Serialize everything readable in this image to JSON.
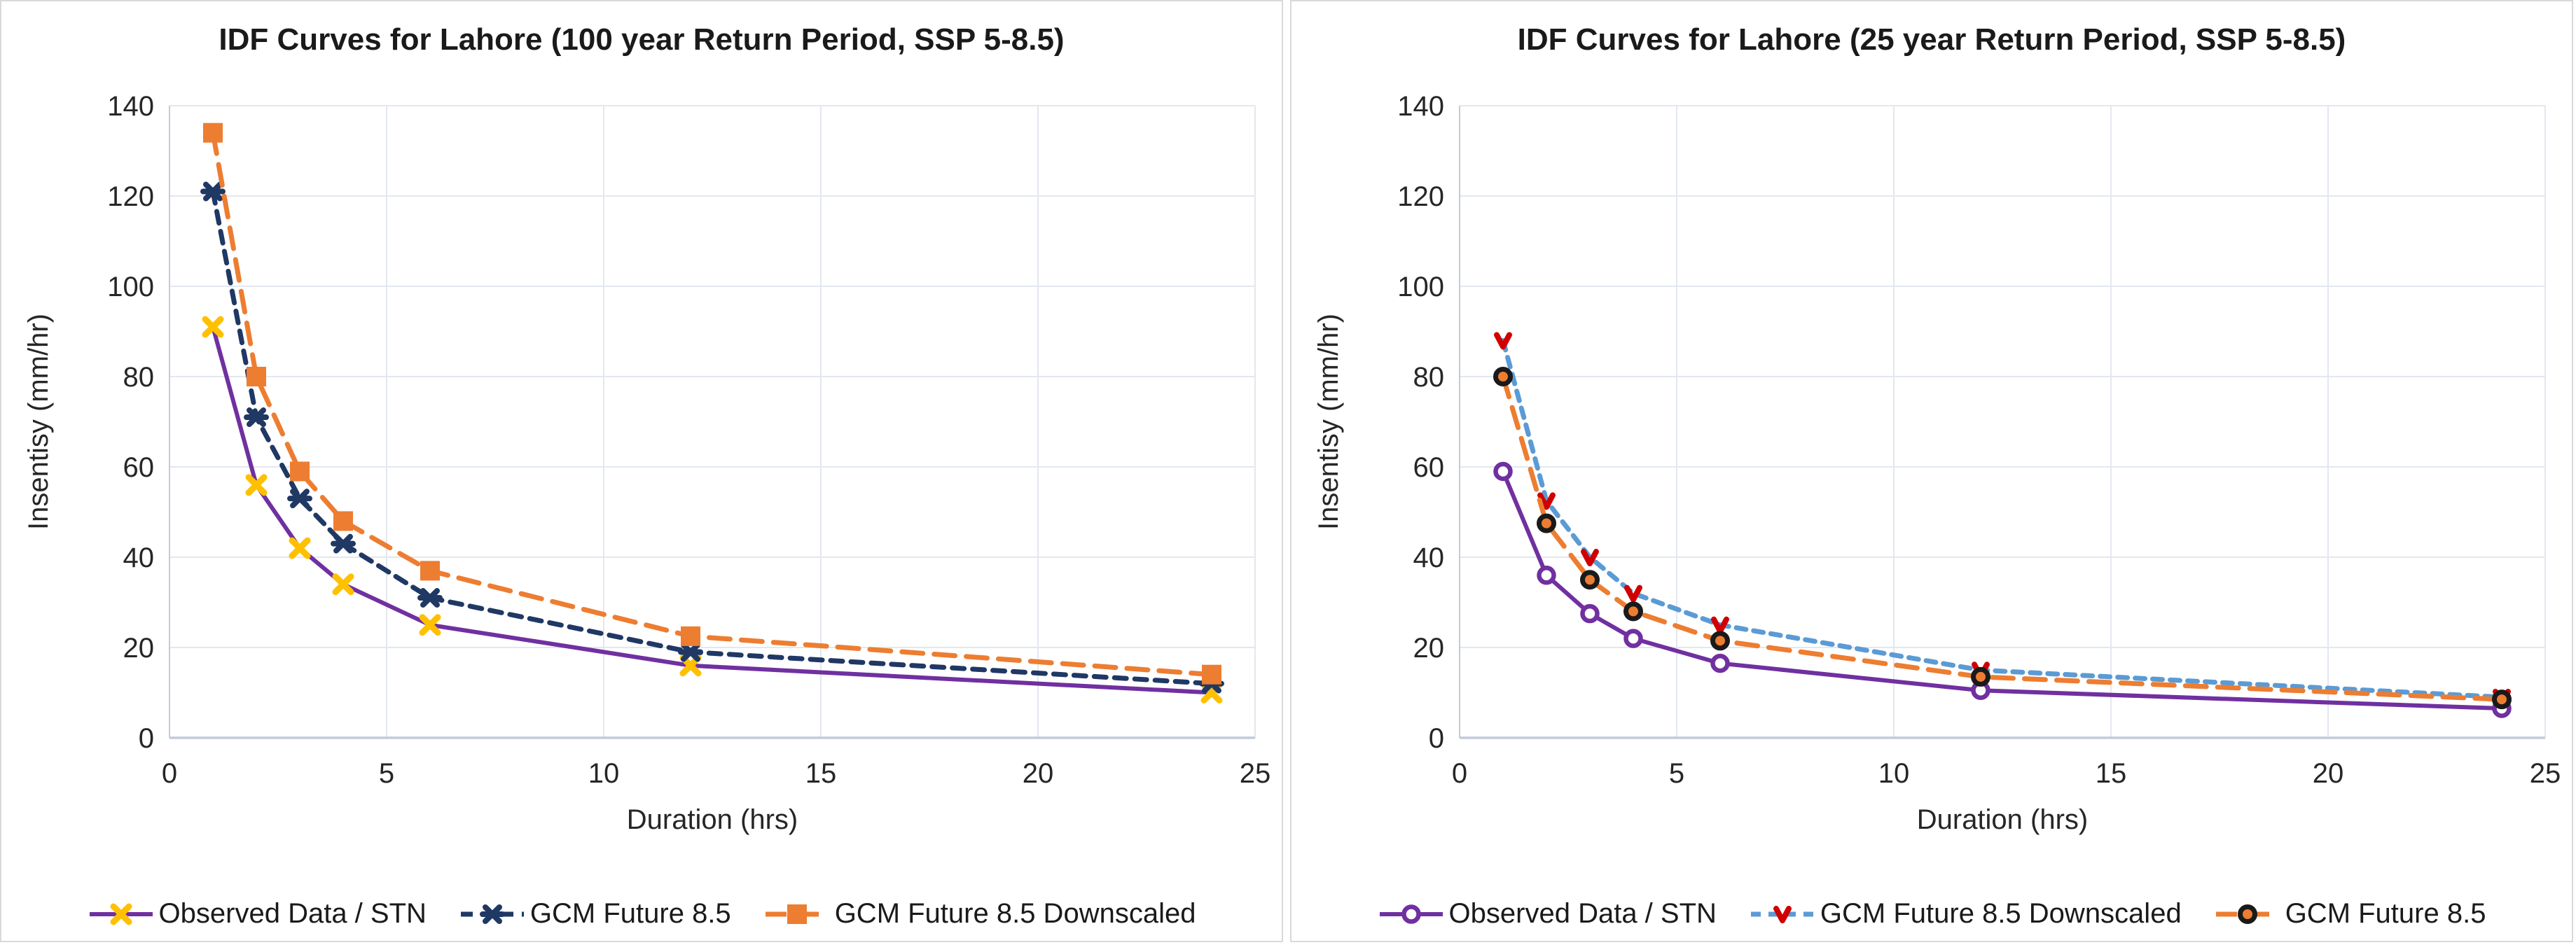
{
  "chart_data": [
    {
      "type": "line",
      "title": "IDF Curves for Lahore (100 year Return Period, SSP 5-8.5)",
      "xlabel": "Duration (hrs)",
      "ylabel": "Insentisy (mm/hr)",
      "xlim": [
        0,
        25
      ],
      "ylim": [
        0,
        140
      ],
      "x_tick_labels": [
        "0",
        "5",
        "10",
        "15",
        "20",
        "25"
      ],
      "y_tick_labels": [
        "0",
        "20",
        "40",
        "60",
        "80",
        "100",
        "120",
        "140"
      ],
      "x_ticks": [
        0,
        5,
        10,
        15,
        20,
        25
      ],
      "y_ticks": [
        0,
        20,
        40,
        60,
        80,
        100,
        120,
        140
      ],
      "grid": true,
      "legend_position": "bottom",
      "x": [
        1,
        2,
        3,
        4,
        6,
        12,
        24
      ],
      "series": [
        {
          "name": "Observed Data / STN",
          "line_color": "#7030A0",
          "line_style": "solid",
          "line_width": 6,
          "marker": "x",
          "marker_color": "#FFC000",
          "values": [
            91,
            56,
            42,
            34,
            25,
            16,
            10
          ]
        },
        {
          "name": "GCM Future 8.5",
          "line_color": "#1F3864",
          "line_style": "dash",
          "line_width": 7,
          "marker": "x-bar",
          "marker_color": "#1F3864",
          "values": [
            121,
            71,
            53,
            43,
            31,
            19,
            12
          ]
        },
        {
          "name": "GCM Future 8.5 Downscaled",
          "line_color": "#ED7D31",
          "line_style": "long-dash",
          "line_width": 7,
          "marker": "square",
          "marker_color": "#ED7D31",
          "values": [
            134,
            80,
            59,
            48,
            37,
            22.5,
            14
          ]
        }
      ]
    },
    {
      "type": "line",
      "title": "IDF Curves for Lahore (25 year Return Period, SSP 5-8.5)",
      "xlabel": "Duration (hrs)",
      "ylabel": "Insentisy (mm/hr)",
      "xlim": [
        0,
        25
      ],
      "ylim": [
        0,
        140
      ],
      "x_tick_labels": [
        "0",
        "5",
        "10",
        "15",
        "20",
        "25"
      ],
      "y_tick_labels": [
        "0",
        "20",
        "40",
        "60",
        "80",
        "100",
        "120",
        "140"
      ],
      "x_ticks": [
        0,
        5,
        10,
        15,
        20,
        25
      ],
      "y_ticks": [
        0,
        20,
        40,
        60,
        80,
        100,
        120,
        140
      ],
      "grid": true,
      "legend_position": "bottom",
      "x": [
        1,
        2,
        3,
        4,
        6,
        12,
        24
      ],
      "series": [
        {
          "name": "Observed Data / STN",
          "line_color": "#7030A0",
          "line_style": "solid",
          "line_width": 6,
          "marker": "circle",
          "marker_color": "#7030A0",
          "values": [
            59,
            36,
            27.5,
            22,
            16.5,
            10.5,
            6.5
          ]
        },
        {
          "name": "GCM Future 8.5 Downscaled",
          "line_color": "#5B9BD5",
          "line_style": "short-dash",
          "line_width": 7,
          "marker": "v",
          "marker_color": "#D00000",
          "values": [
            88,
            52.5,
            40,
            32,
            25,
            15,
            9
          ]
        },
        {
          "name": "GCM Future 8.5",
          "line_color": "#ED7D31",
          "line_style": "long-dash",
          "line_width": 7,
          "marker": "circle-dot",
          "marker_color": "#1A1A1A",
          "values": [
            80,
            47.5,
            35,
            28,
            21.5,
            13.5,
            8.5
          ]
        }
      ]
    }
  ],
  "style": {
    "grid_color": "#E3E7F0",
    "axis_color": "#C3CBDA",
    "tick_text_color": "#262626",
    "title_color": "#1A1A1A"
  }
}
